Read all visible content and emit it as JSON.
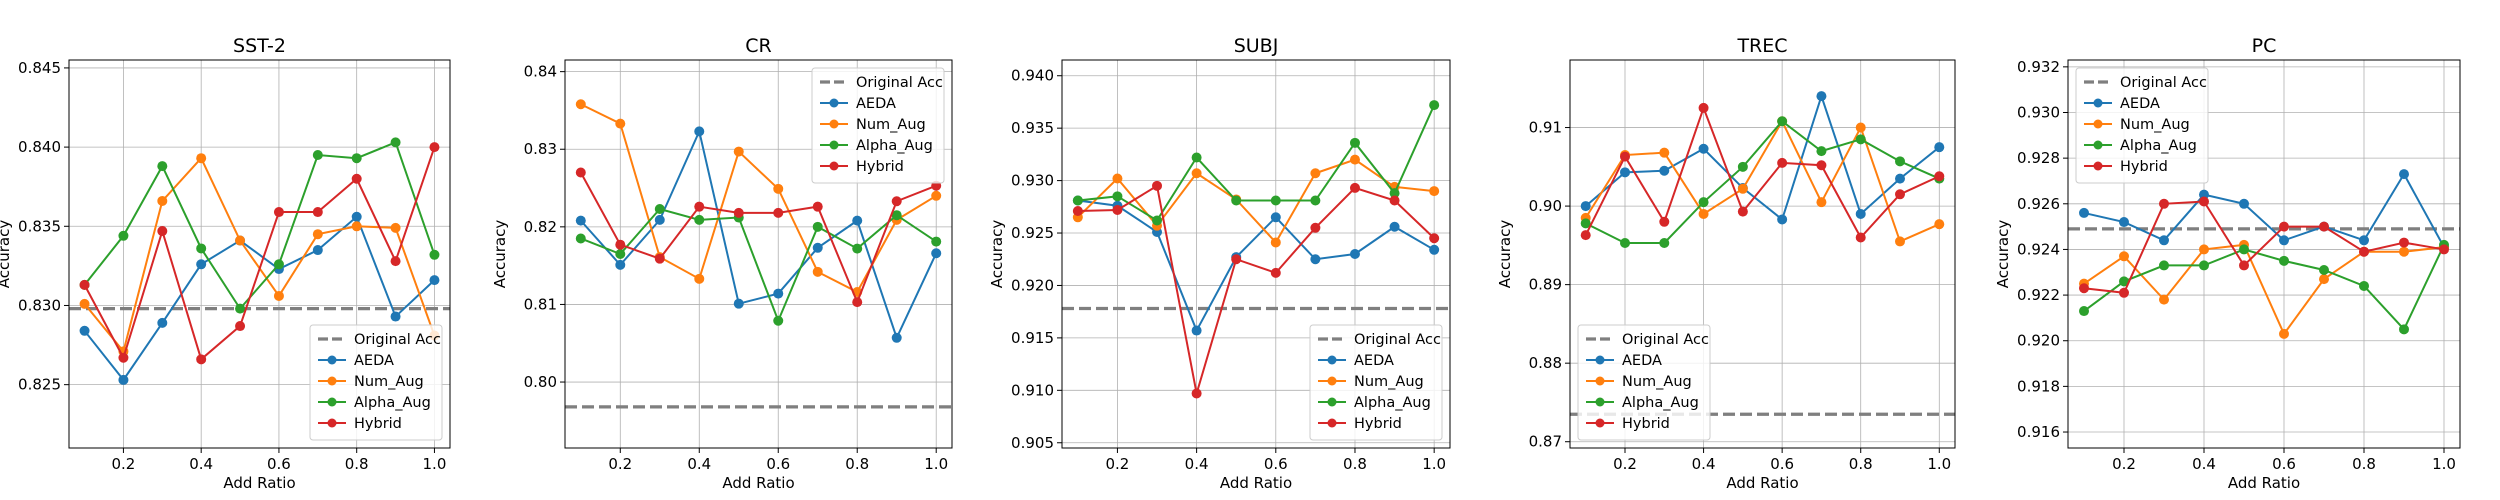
{
  "chart_data": [
    {
      "type": "line",
      "title": "SST-2",
      "xlabel": "Add Ratio",
      "ylabel": "Accuracy",
      "xlim": [
        0.06,
        1.04
      ],
      "ylim": [
        0.821,
        0.8455
      ],
      "xticks": [
        0.2,
        0.4,
        0.6,
        0.8,
        1.0
      ],
      "xtick_labels": [
        "0.2",
        "0.4",
        "0.6",
        "0.8",
        "1.0"
      ],
      "yticks": [
        0.825,
        0.83,
        0.835,
        0.84,
        0.845
      ],
      "ytick_labels": [
        "0.825",
        "0.830",
        "0.835",
        "0.840",
        "0.845"
      ],
      "grid": true,
      "legend_position": "lower-right",
      "x": [
        0.1,
        0.2,
        0.3,
        0.4,
        0.5,
        0.6,
        0.7,
        0.8,
        0.9,
        1.0
      ],
      "baseline": {
        "name": "Original Acc",
        "value": 0.8298,
        "color": "#7f7f7f"
      },
      "series": [
        {
          "name": "AEDA",
          "color": "#1f77b4",
          "values": [
            0.8284,
            0.8253,
            0.8289,
            0.8326,
            0.8341,
            0.8323,
            0.8335,
            0.8356,
            0.8293,
            0.8316
          ]
        },
        {
          "name": "Num_Aug",
          "color": "#ff7f0e",
          "values": [
            0.8301,
            0.8271,
            0.8366,
            0.8393,
            0.8341,
            0.8306,
            0.8345,
            0.835,
            0.8349,
            0.8281
          ]
        },
        {
          "name": "Alpha_Aug",
          "color": "#2ca02c",
          "values": [
            0.8313,
            0.8344,
            0.8388,
            0.8336,
            0.8298,
            0.8326,
            0.8395,
            0.8393,
            0.8403,
            0.8332
          ]
        },
        {
          "name": "Hybrid",
          "color": "#d62728",
          "values": [
            0.8313,
            0.8267,
            0.8347,
            0.8266,
            0.8287,
            0.8359,
            0.8359,
            0.838,
            0.8328,
            0.84
          ]
        }
      ]
    },
    {
      "type": "line",
      "title": "CR",
      "xlabel": "Add Ratio",
      "ylabel": "Accuracy",
      "xlim": [
        0.06,
        1.04
      ],
      "ylim": [
        0.7915,
        0.8415
      ],
      "xticks": [
        0.2,
        0.4,
        0.6,
        0.8,
        1.0
      ],
      "xtick_labels": [
        "0.2",
        "0.4",
        "0.6",
        "0.8",
        "1.0"
      ],
      "yticks": [
        0.8,
        0.81,
        0.82,
        0.83,
        0.84
      ],
      "ytick_labels": [
        "0.80",
        "0.81",
        "0.82",
        "0.83",
        "0.84"
      ],
      "grid": true,
      "legend_position": "upper-right",
      "x": [
        0.1,
        0.2,
        0.3,
        0.4,
        0.5,
        0.6,
        0.7,
        0.8,
        0.9,
        1.0
      ],
      "baseline": {
        "name": "Original Acc",
        "value": 0.7968,
        "color": "#7f7f7f"
      },
      "series": [
        {
          "name": "AEDA",
          "color": "#1f77b4",
          "values": [
            0.8208,
            0.8151,
            0.8209,
            0.8323,
            0.8101,
            0.8114,
            0.8173,
            0.8208,
            0.8057,
            0.8166
          ]
        },
        {
          "name": "Num_Aug",
          "color": "#ff7f0e",
          "values": [
            0.8358,
            0.8333,
            0.8161,
            0.8133,
            0.8297,
            0.8249,
            0.8142,
            0.8116,
            0.8209,
            0.824
          ]
        },
        {
          "name": "Alpha_Aug",
          "color": "#2ca02c",
          "values": [
            0.8185,
            0.8165,
            0.8223,
            0.8209,
            0.8212,
            0.8079,
            0.82,
            0.8172,
            0.8215,
            0.8181
          ]
        },
        {
          "name": "Hybrid",
          "color": "#d62728",
          "values": [
            0.827,
            0.8177,
            0.8159,
            0.8226,
            0.8218,
            0.8218,
            0.8226,
            0.8103,
            0.8233,
            0.8253
          ]
        }
      ]
    },
    {
      "type": "line",
      "title": "SUBJ",
      "xlabel": "Add Ratio",
      "ylabel": "Accuracy",
      "xlim": [
        0.06,
        1.04
      ],
      "ylim": [
        0.9045,
        0.9415
      ],
      "xticks": [
        0.2,
        0.4,
        0.6,
        0.8,
        1.0
      ],
      "xtick_labels": [
        "0.2",
        "0.4",
        "0.6",
        "0.8",
        "1.0"
      ],
      "yticks": [
        0.905,
        0.91,
        0.915,
        0.92,
        0.925,
        0.93,
        0.935,
        0.94
      ],
      "ytick_labels": [
        "0.905",
        "0.910",
        "0.915",
        "0.920",
        "0.925",
        "0.930",
        "0.935",
        "0.940"
      ],
      "grid": true,
      "legend_position": "lower-right",
      "x": [
        0.1,
        0.2,
        0.3,
        0.4,
        0.5,
        0.6,
        0.7,
        0.8,
        0.9,
        1.0
      ],
      "baseline": {
        "name": "Original Acc",
        "value": 0.9178,
        "color": "#7f7f7f"
      },
      "series": [
        {
          "name": "AEDA",
          "color": "#1f77b4",
          "values": [
            0.9281,
            0.9276,
            0.9251,
            0.9157,
            0.9227,
            0.9265,
            0.9225,
            0.923,
            0.9256,
            0.9234
          ]
        },
        {
          "name": "Num_Aug",
          "color": "#ff7f0e",
          "values": [
            0.9265,
            0.9302,
            0.9257,
            0.9307,
            0.9282,
            0.9241,
            0.9307,
            0.932,
            0.9294,
            0.929
          ]
        },
        {
          "name": "Alpha_Aug",
          "color": "#2ca02c",
          "values": [
            0.9281,
            0.9285,
            0.9262,
            0.9322,
            0.9281,
            0.9281,
            0.9281,
            0.9336,
            0.9288,
            0.9372
          ]
        },
        {
          "name": "Hybrid",
          "color": "#d62728",
          "values": [
            0.9271,
            0.9272,
            0.9295,
            0.9097,
            0.9225,
            0.9212,
            0.9255,
            0.9293,
            0.9281,
            0.9245
          ]
        }
      ]
    },
    {
      "type": "line",
      "title": "TREC",
      "xlabel": "Add Ratio",
      "ylabel": "Accuracy",
      "xlim": [
        0.06,
        1.04
      ],
      "ylim": [
        0.8692,
        0.9186
      ],
      "xticks": [
        0.2,
        0.4,
        0.6,
        0.8,
        1.0
      ],
      "xtick_labels": [
        "0.2",
        "0.4",
        "0.6",
        "0.8",
        "1.0"
      ],
      "yticks": [
        0.87,
        0.88,
        0.89,
        0.9,
        0.91
      ],
      "ytick_labels": [
        "0.87",
        "0.88",
        "0.89",
        "0.90",
        "0.91"
      ],
      "grid": true,
      "legend_position": "lower-left",
      "x": [
        0.1,
        0.2,
        0.3,
        0.4,
        0.5,
        0.6,
        0.7,
        0.8,
        0.9,
        1.0
      ],
      "baseline": {
        "name": "Original Acc",
        "value": 0.8735,
        "color": "#7f7f7f"
      },
      "series": [
        {
          "name": "AEDA",
          "color": "#1f77b4",
          "values": [
            0.9,
            0.9043,
            0.9045,
            0.9073,
            0.9023,
            0.8983,
            0.914,
            0.899,
            0.9035,
            0.9075
          ]
        },
        {
          "name": "Num_Aug",
          "color": "#ff7f0e",
          "values": [
            0.8985,
            0.9065,
            0.9068,
            0.899,
            0.9022,
            0.9108,
            0.9005,
            0.91,
            0.8955,
            0.8977
          ]
        },
        {
          "name": "Alpha_Aug",
          "color": "#2ca02c",
          "values": [
            0.8978,
            0.8953,
            0.8953,
            0.9005,
            0.905,
            0.9108,
            0.907,
            0.9085,
            0.9057,
            0.9035
          ]
        },
        {
          "name": "Hybrid",
          "color": "#d62728",
          "values": [
            0.8963,
            0.9063,
            0.898,
            0.9125,
            0.8993,
            0.9055,
            0.9052,
            0.896,
            0.9015,
            0.9038
          ]
        }
      ]
    },
    {
      "type": "line",
      "title": "PC",
      "xlabel": "Add Ratio",
      "ylabel": "Accuracy",
      "xlim": [
        0.06,
        1.04
      ],
      "ylim": [
        0.9153,
        0.9323
      ],
      "xticks": [
        0.2,
        0.4,
        0.6,
        0.8,
        1.0
      ],
      "xtick_labels": [
        "0.2",
        "0.4",
        "0.6",
        "0.8",
        "1.0"
      ],
      "yticks": [
        0.916,
        0.918,
        0.92,
        0.922,
        0.924,
        0.926,
        0.928,
        0.93,
        0.932
      ],
      "ytick_labels": [
        "0.916",
        "0.918",
        "0.920",
        "0.922",
        "0.924",
        "0.926",
        "0.928",
        "0.930",
        "0.932"
      ],
      "grid": true,
      "legend_position": "upper-left",
      "x": [
        0.1,
        0.2,
        0.3,
        0.4,
        0.5,
        0.6,
        0.7,
        0.8,
        0.9,
        1.0
      ],
      "baseline": {
        "name": "Original Acc",
        "value": 0.9249,
        "color": "#7f7f7f"
      },
      "series": [
        {
          "name": "AEDA",
          "color": "#1f77b4",
          "values": [
            0.9256,
            0.9252,
            0.9244,
            0.9264,
            0.926,
            0.9244,
            0.925,
            0.9244,
            0.9273,
            0.9241
          ]
        },
        {
          "name": "Num_Aug",
          "color": "#ff7f0e",
          "values": [
            0.9225,
            0.9237,
            0.9218,
            0.924,
            0.9242,
            0.9203,
            0.9227,
            0.9239,
            0.9239,
            0.9241
          ]
        },
        {
          "name": "Alpha_Aug",
          "color": "#2ca02c",
          "values": [
            0.9213,
            0.9226,
            0.9233,
            0.9233,
            0.924,
            0.9235,
            0.9231,
            0.9224,
            0.9205,
            0.9242
          ]
        },
        {
          "name": "Hybrid",
          "color": "#d62728",
          "values": [
            0.9223,
            0.9221,
            0.926,
            0.9261,
            0.9233,
            0.925,
            0.925,
            0.9239,
            0.9243,
            0.924
          ]
        }
      ]
    }
  ]
}
